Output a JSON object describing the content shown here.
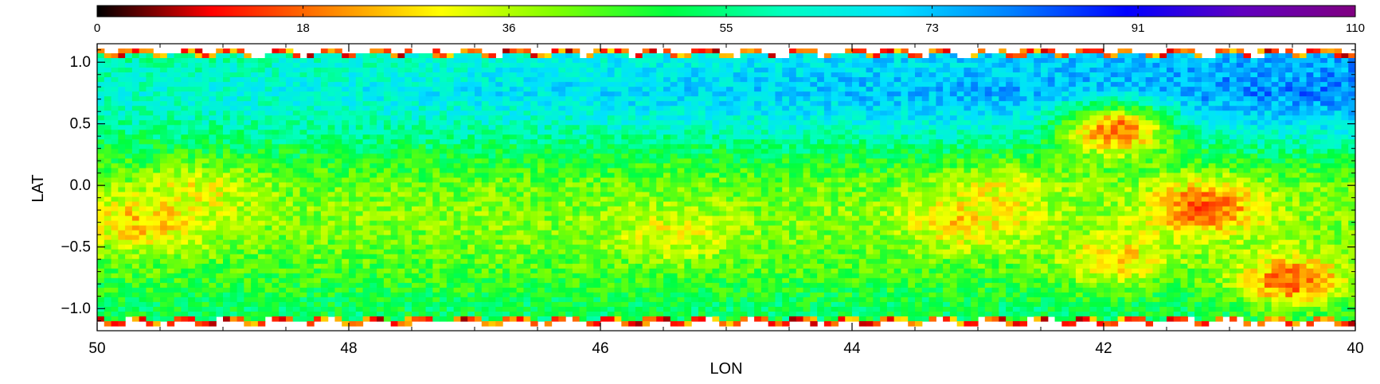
{
  "chart_data": {
    "type": "heatmap",
    "xlabel": "LON",
    "ylabel": "LAT",
    "xlim": [
      50,
      40
    ],
    "ylim": [
      -1.18,
      1.15
    ],
    "x_ticks": [
      "50",
      "48",
      "46",
      "44",
      "42",
      "40"
    ],
    "x_tick_values": [
      50,
      48,
      46,
      44,
      42,
      40
    ],
    "y_ticks": [
      "1.0",
      "0.5",
      "0.0",
      "−0.5",
      "−1.0"
    ],
    "y_tick_values": [
      1.0,
      0.5,
      0.0,
      -0.5,
      -1.0
    ],
    "colorbar": {
      "ticks": [
        "0",
        "18",
        "36",
        "55",
        "73",
        "91",
        "110"
      ],
      "tick_values": [
        0,
        18,
        36,
        55,
        73,
        91,
        110
      ],
      "range": [
        0,
        110
      ],
      "colors": [
        "#000000",
        "#ff0000",
        "#ff8000",
        "#ffff00",
        "#80ff00",
        "#00ff40",
        "#00ffc0",
        "#00e0ff",
        "#0080ff",
        "#0000ff",
        "#6000c0",
        "#800080"
      ]
    },
    "grid": false,
    "value_field": {
      "description_units": "colorbar value",
      "lat_profile": [
        {
          "lat": 1.0,
          "value": 62
        },
        {
          "lat": 0.75,
          "value": 66
        },
        {
          "lat": 0.5,
          "value": 60
        },
        {
          "lat": 0.25,
          "value": 50
        },
        {
          "lat": 0.0,
          "value": 42
        },
        {
          "lat": -0.25,
          "value": 40
        },
        {
          "lat": -0.5,
          "value": 42
        },
        {
          "lat": -0.75,
          "value": 46
        },
        {
          "lat": -1.0,
          "value": 52
        }
      ],
      "lon_gradient_high_lat": {
        "lon50": 56,
        "lon40": 74
      },
      "features": [
        {
          "lon": 49.6,
          "lat": -0.3,
          "value": 22
        },
        {
          "lon": 49.2,
          "lat": -0.05,
          "value": 30
        },
        {
          "lon": 45.4,
          "lat": -0.4,
          "value": 30
        },
        {
          "lon": 43.1,
          "lat": -0.3,
          "value": 25
        },
        {
          "lon": 42.8,
          "lat": -0.05,
          "value": 30
        },
        {
          "lon": 41.9,
          "lat": -0.6,
          "value": 25
        },
        {
          "lon": 41.9,
          "lat": 0.45,
          "value": 10
        },
        {
          "lon": 41.2,
          "lat": -0.18,
          "value": 12
        },
        {
          "lon": 40.5,
          "lat": -0.78,
          "value": 12
        }
      ]
    }
  }
}
